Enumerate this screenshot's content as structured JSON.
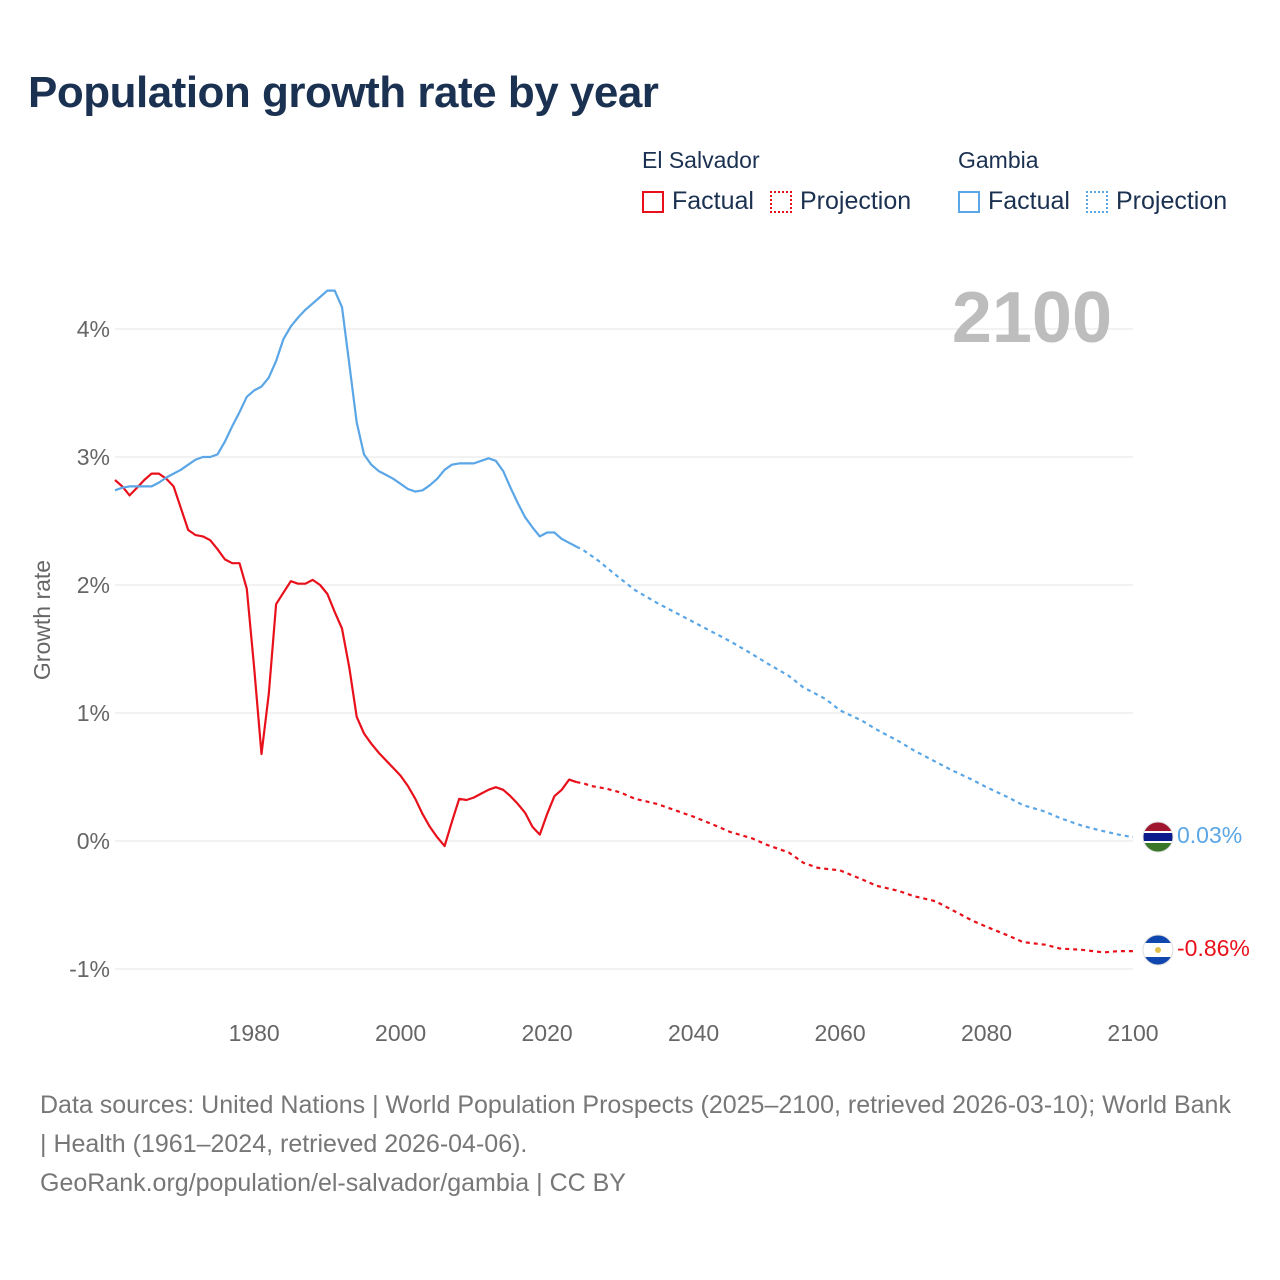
{
  "title": "Population growth rate by year",
  "legend": {
    "groups": [
      {
        "country": "El Salvador",
        "factual_label": "Factual",
        "projection_label": "Projection",
        "color": "#e8111b"
      },
      {
        "country": "Gambia",
        "factual_label": "Factual",
        "projection_label": "Projection",
        "color": "#5aa6e6"
      }
    ]
  },
  "footer": {
    "sources": "Data sources: United Nations | World Population Prospects (2025–2100, retrieved 2026-03-10); World Bank | Health (1961–2024, retrieved 2026-04-06).",
    "credit": "GeoRank.org/population/el-salvador/gambia | CC BY"
  },
  "chart_data": {
    "type": "line",
    "title": "Population growth rate by year",
    "xlabel": "",
    "ylabel": "Growth rate",
    "xlim": [
      1961,
      2100
    ],
    "ylim": [
      -1.35,
      4.5
    ],
    "x_ticks": [
      1980,
      2000,
      2020,
      2040,
      2060,
      2080,
      2100
    ],
    "x_tick_labels": [
      "1980",
      "2000",
      "2020",
      "2040",
      "2060",
      "2080",
      "2100"
    ],
    "y_ticks": [
      -1,
      0,
      1,
      2,
      3,
      4
    ],
    "y_tick_labels": [
      "-1%",
      "0%",
      "1%",
      "2%",
      "3%",
      "4%"
    ],
    "grid": true,
    "current_year_label": "2100",
    "series": [
      {
        "name": "El Salvador",
        "color": "#e8111b",
        "end_label": "-0.86%",
        "end_icon": "el-salvador-flag-icon",
        "factual": [
          [
            1961,
            2.82
          ],
          [
            1962,
            2.77
          ],
          [
            1963,
            2.7
          ],
          [
            1964,
            2.76
          ],
          [
            1965,
            2.82
          ],
          [
            1966,
            2.87
          ],
          [
            1967,
            2.87
          ],
          [
            1968,
            2.83
          ],
          [
            1969,
            2.77
          ],
          [
            1970,
            2.6
          ],
          [
            1971,
            2.43
          ],
          [
            1972,
            2.39
          ],
          [
            1973,
            2.38
          ],
          [
            1974,
            2.35
          ],
          [
            1975,
            2.28
          ],
          [
            1976,
            2.2
          ],
          [
            1977,
            2.17
          ],
          [
            1978,
            2.17
          ],
          [
            1979,
            1.97
          ],
          [
            1980,
            1.35
          ],
          [
            1981,
            0.68
          ],
          [
            1982,
            1.15
          ],
          [
            1983,
            1.85
          ],
          [
            1984,
            1.94
          ],
          [
            1985,
            2.03
          ],
          [
            1986,
            2.01
          ],
          [
            1987,
            2.01
          ],
          [
            1988,
            2.04
          ],
          [
            1989,
            2.0
          ],
          [
            1990,
            1.93
          ],
          [
            1991,
            1.79
          ],
          [
            1992,
            1.66
          ],
          [
            1993,
            1.35
          ],
          [
            1994,
            0.97
          ],
          [
            1995,
            0.84
          ],
          [
            1996,
            0.76
          ],
          [
            1997,
            0.69
          ],
          [
            1998,
            0.63
          ],
          [
            1999,
            0.57
          ],
          [
            2000,
            0.51
          ],
          [
            2001,
            0.43
          ],
          [
            2002,
            0.33
          ],
          [
            2003,
            0.21
          ],
          [
            2004,
            0.11
          ],
          [
            2005,
            0.03
          ],
          [
            2006,
            -0.04
          ],
          [
            2007,
            0.15
          ],
          [
            2008,
            0.33
          ],
          [
            2009,
            0.32
          ],
          [
            2010,
            0.34
          ],
          [
            2011,
            0.37
          ],
          [
            2012,
            0.4
          ],
          [
            2013,
            0.42
          ],
          [
            2014,
            0.4
          ],
          [
            2015,
            0.35
          ],
          [
            2016,
            0.29
          ],
          [
            2017,
            0.22
          ],
          [
            2018,
            0.11
          ],
          [
            2019,
            0.05
          ],
          [
            2020,
            0.21
          ],
          [
            2021,
            0.35
          ],
          [
            2022,
            0.4
          ],
          [
            2023,
            0.48
          ],
          [
            2024,
            0.46
          ]
        ],
        "projection": [
          [
            2024,
            0.46
          ],
          [
            2025,
            0.45
          ],
          [
            2026,
            0.43
          ],
          [
            2028,
            0.41
          ],
          [
            2030,
            0.38
          ],
          [
            2032,
            0.33
          ],
          [
            2035,
            0.29
          ],
          [
            2038,
            0.23
          ],
          [
            2040,
            0.19
          ],
          [
            2043,
            0.12
          ],
          [
            2045,
            0.07
          ],
          [
            2048,
            0.02
          ],
          [
            2050,
            -0.03
          ],
          [
            2053,
            -0.09
          ],
          [
            2055,
            -0.17
          ],
          [
            2057,
            -0.21
          ],
          [
            2060,
            -0.23
          ],
          [
            2063,
            -0.3
          ],
          [
            2065,
            -0.35
          ],
          [
            2068,
            -0.39
          ],
          [
            2070,
            -0.43
          ],
          [
            2073,
            -0.47
          ],
          [
            2075,
            -0.53
          ],
          [
            2078,
            -0.62
          ],
          [
            2080,
            -0.67
          ],
          [
            2083,
            -0.74
          ],
          [
            2085,
            -0.79
          ],
          [
            2088,
            -0.81
          ],
          [
            2090,
            -0.84
          ],
          [
            2093,
            -0.85
          ],
          [
            2096,
            -0.87
          ],
          [
            2098,
            -0.86
          ],
          [
            2100,
            -0.86
          ]
        ]
      },
      {
        "name": "Gambia",
        "color": "#5aa6e6",
        "end_label": "0.03%",
        "end_icon": "gambia-flag-icon",
        "factual": [
          [
            1961,
            2.74
          ],
          [
            1962,
            2.76
          ],
          [
            1963,
            2.77
          ],
          [
            1964,
            2.77
          ],
          [
            1965,
            2.77
          ],
          [
            1966,
            2.77
          ],
          [
            1967,
            2.8
          ],
          [
            1968,
            2.84
          ],
          [
            1969,
            2.87
          ],
          [
            1970,
            2.9
          ],
          [
            1971,
            2.94
          ],
          [
            1972,
            2.98
          ],
          [
            1973,
            3.0
          ],
          [
            1974,
            3.0
          ],
          [
            1975,
            3.02
          ],
          [
            1976,
            3.12
          ],
          [
            1977,
            3.24
          ],
          [
            1978,
            3.35
          ],
          [
            1979,
            3.47
          ],
          [
            1980,
            3.52
          ],
          [
            1981,
            3.55
          ],
          [
            1982,
            3.62
          ],
          [
            1983,
            3.75
          ],
          [
            1984,
            3.92
          ],
          [
            1985,
            4.02
          ],
          [
            1986,
            4.09
          ],
          [
            1987,
            4.15
          ],
          [
            1988,
            4.2
          ],
          [
            1989,
            4.25
          ],
          [
            1990,
            4.3
          ],
          [
            1991,
            4.3
          ],
          [
            1992,
            4.17
          ],
          [
            1993,
            3.72
          ],
          [
            1994,
            3.27
          ],
          [
            1995,
            3.02
          ],
          [
            1996,
            2.94
          ],
          [
            1997,
            2.89
          ],
          [
            1998,
            2.86
          ],
          [
            1999,
            2.83
          ],
          [
            2000,
            2.79
          ],
          [
            2001,
            2.75
          ],
          [
            2002,
            2.73
          ],
          [
            2003,
            2.74
          ],
          [
            2004,
            2.78
          ],
          [
            2005,
            2.83
          ],
          [
            2006,
            2.9
          ],
          [
            2007,
            2.94
          ],
          [
            2008,
            2.95
          ],
          [
            2009,
            2.95
          ],
          [
            2010,
            2.95
          ],
          [
            2011,
            2.97
          ],
          [
            2012,
            2.99
          ],
          [
            2013,
            2.97
          ],
          [
            2014,
            2.89
          ],
          [
            2015,
            2.76
          ],
          [
            2016,
            2.64
          ],
          [
            2017,
            2.53
          ],
          [
            2018,
            2.45
          ],
          [
            2019,
            2.38
          ],
          [
            2020,
            2.41
          ],
          [
            2021,
            2.41
          ],
          [
            2022,
            2.36
          ],
          [
            2023,
            2.33
          ],
          [
            2024,
            2.3
          ]
        ],
        "projection": [
          [
            2024,
            2.3
          ],
          [
            2025,
            2.27
          ],
          [
            2027,
            2.19
          ],
          [
            2030,
            2.05
          ],
          [
            2032,
            1.96
          ],
          [
            2035,
            1.86
          ],
          [
            2038,
            1.77
          ],
          [
            2040,
            1.71
          ],
          [
            2043,
            1.62
          ],
          [
            2045,
            1.56
          ],
          [
            2048,
            1.46
          ],
          [
            2050,
            1.39
          ],
          [
            2053,
            1.29
          ],
          [
            2055,
            1.2
          ],
          [
            2058,
            1.11
          ],
          [
            2060,
            1.02
          ],
          [
            2063,
            0.94
          ],
          [
            2065,
            0.87
          ],
          [
            2068,
            0.78
          ],
          [
            2070,
            0.71
          ],
          [
            2073,
            0.62
          ],
          [
            2075,
            0.56
          ],
          [
            2078,
            0.48
          ],
          [
            2080,
            0.42
          ],
          [
            2083,
            0.34
          ],
          [
            2085,
            0.28
          ],
          [
            2088,
            0.23
          ],
          [
            2090,
            0.18
          ],
          [
            2093,
            0.12
          ],
          [
            2095,
            0.09
          ],
          [
            2098,
            0.05
          ],
          [
            2100,
            0.03
          ]
        ]
      }
    ]
  }
}
